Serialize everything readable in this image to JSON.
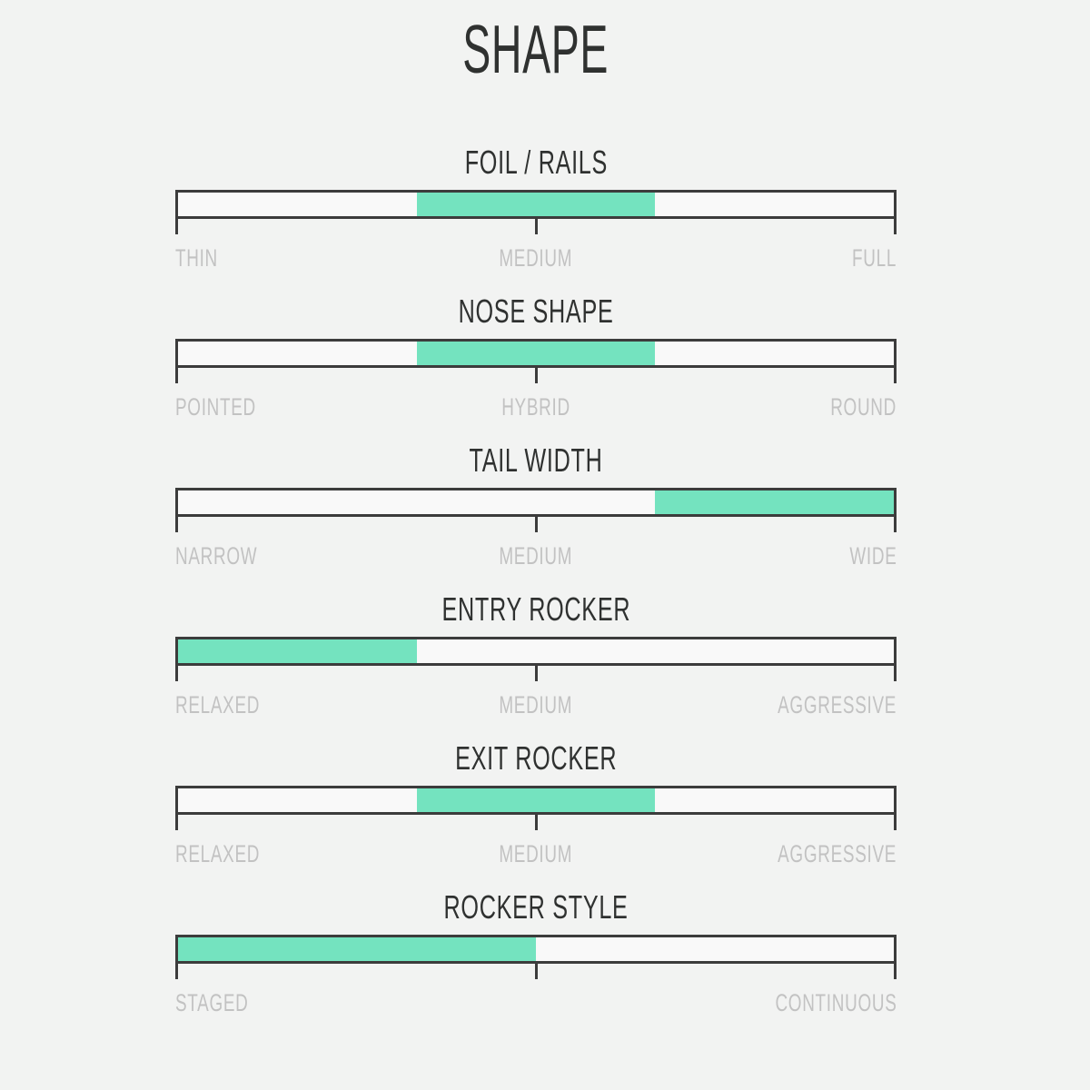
{
  "title": "SHAPE",
  "colors": {
    "pagebg": "#f2f3f2",
    "trackbg": "#f9f9f9",
    "accent": "#74e3bf",
    "border": "#3c3c3c",
    "title": "#2f3130",
    "label": "#c2c2c2"
  },
  "sliders": [
    {
      "title": "FOIL / RAILS",
      "labels": {
        "left": "THIN",
        "center": "MEDIUM",
        "right": "FULL"
      },
      "range_pct": [
        33.33,
        66.67
      ]
    },
    {
      "title": "NOSE SHAPE",
      "labels": {
        "left": "POINTED",
        "center": "HYBRID",
        "right": "ROUND"
      },
      "range_pct": [
        33.33,
        66.67
      ]
    },
    {
      "title": "TAIL WIDTH",
      "labels": {
        "left": "NARROW",
        "center": "MEDIUM",
        "right": "WIDE"
      },
      "range_pct": [
        66.67,
        100
      ]
    },
    {
      "title": "ENTRY ROCKER",
      "labels": {
        "left": "RELAXED",
        "center": "MEDIUM",
        "right": "AGGRESSIVE"
      },
      "range_pct": [
        0,
        33.33
      ]
    },
    {
      "title": "EXIT ROCKER",
      "labels": {
        "left": "RELAXED",
        "center": "MEDIUM",
        "right": "AGGRESSIVE"
      },
      "range_pct": [
        33.33,
        66.67
      ]
    },
    {
      "title": "ROCKER STYLE",
      "labels": {
        "left": "STAGED",
        "center": "",
        "right": "CONTINUOUS"
      },
      "range_pct": [
        0,
        50
      ]
    }
  ],
  "chart_data": {
    "type": "bar",
    "subtype": "horizontal-range-indicators",
    "title": "SHAPE",
    "categories": [
      "FOIL / RAILS",
      "NOSE SHAPE",
      "TAIL WIDTH",
      "ENTRY ROCKER",
      "EXIT ROCKER",
      "ROCKER STYLE"
    ],
    "series": [
      {
        "name": "highlighted-range-percent",
        "values": [
          [
            33.33,
            66.67
          ],
          [
            33.33,
            66.67
          ],
          [
            66.67,
            100
          ],
          [
            0,
            33.33
          ],
          [
            33.33,
            66.67
          ],
          [
            0,
            50
          ]
        ]
      }
    ],
    "scale_labels": [
      [
        "THIN",
        "MEDIUM",
        "FULL"
      ],
      [
        "POINTED",
        "HYBRID",
        "ROUND"
      ],
      [
        "NARROW",
        "MEDIUM",
        "WIDE"
      ],
      [
        "RELAXED",
        "MEDIUM",
        "AGGRESSIVE"
      ],
      [
        "RELAXED",
        "MEDIUM",
        "AGGRESSIVE"
      ],
      [
        "STAGED",
        "CONTINUOUS"
      ]
    ],
    "axis_range": [
      0,
      100
    ],
    "grid": false,
    "legend": false,
    "accent_color": "#74e3bf"
  }
}
